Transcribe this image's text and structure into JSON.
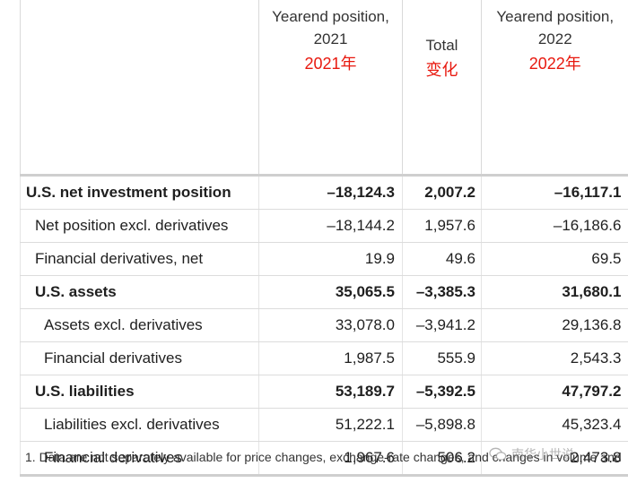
{
  "header": {
    "col_2021_line1": "Yearend position,",
    "col_2021_line2": "2021",
    "col_2021_cn": "2021年",
    "col_total_line1": "Total",
    "col_total_cn": "变化",
    "col_2022_line1": "Yearend position,",
    "col_2022_line2": "2022",
    "col_2022_cn": "2022年"
  },
  "rows": [
    {
      "label": "U.S. net investment position",
      "v2021": "–18,124.3",
      "total": "2,007.2",
      "v2022": "–16,117.1"
    },
    {
      "label": "Net position excl. derivatives",
      "v2021": "–18,144.2",
      "total": "1,957.6",
      "v2022": "–16,186.6"
    },
    {
      "label": "Financial derivatives, net",
      "v2021": "19.9",
      "total": "49.6",
      "v2022": "69.5"
    },
    {
      "label": "U.S. assets",
      "v2021": "35,065.5",
      "total": "–3,385.3",
      "v2022": "31,680.1"
    },
    {
      "label": "Assets excl. derivatives",
      "v2021": "33,078.0",
      "total": "–3,941.2",
      "v2022": "29,136.8"
    },
    {
      "label": "Financial derivatives",
      "v2021": "1,987.5",
      "total": "555.9",
      "v2022": "2,543.3"
    },
    {
      "label": "U.S. liabilities",
      "v2021": "53,189.7",
      "total": "–5,392.5",
      "v2022": "47,797.2"
    },
    {
      "label": "Liabilities excl. derivatives",
      "v2021": "51,222.1",
      "total": "–5,898.8",
      "v2022": "45,323.4"
    },
    {
      "label": "Financial derivatives",
      "v2021": "1,967.6",
      "total": "506.2",
      "v2022": "2,473.8"
    }
  ],
  "footnote": "1. Data are not separately available for price changes, exchange-rate changes, and changes in volume and",
  "watermark": "南华小世说",
  "colors": {
    "accent_red": "#e8190f",
    "grid": "#d9d9d9"
  }
}
